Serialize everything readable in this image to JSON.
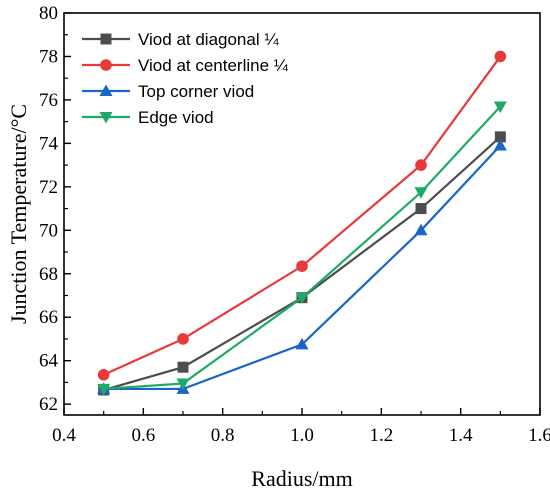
{
  "chart_data": {
    "type": "line",
    "xlabel": "Radius/mm",
    "ylabel": "Junction Temperature/°C",
    "xlim": [
      0.4,
      1.6
    ],
    "ylim": [
      61.5,
      80
    ],
    "x_ticks": [
      0.4,
      0.6,
      0.8,
      1.0,
      1.2,
      1.4,
      1.6
    ],
    "x_tick_labels": [
      "0.4",
      "0.6",
      "0.8",
      "1.0",
      "1.2",
      "1.4",
      "1.6"
    ],
    "y_ticks": [
      62,
      64,
      66,
      68,
      70,
      72,
      74,
      76,
      78,
      80
    ],
    "y_tick_labels": [
      "62",
      "64",
      "66",
      "68",
      "70",
      "72",
      "74",
      "76",
      "78",
      "80"
    ],
    "grid": false,
    "legend_position": "top-left",
    "series": [
      {
        "name": "Viod at diagonal ¼",
        "color": "#4d4d4d",
        "marker": "square",
        "x": [
          0.5,
          0.7,
          1.0,
          1.3,
          1.5
        ],
        "y": [
          62.65,
          63.7,
          66.9,
          71.0,
          74.3
        ]
      },
      {
        "name": "Viod at centerline ¼",
        "color": "#e8393a",
        "marker": "circle",
        "x": [
          0.5,
          0.7,
          1.0,
          1.3,
          1.5
        ],
        "y": [
          63.35,
          65.0,
          68.35,
          73.0,
          78.0
        ]
      },
      {
        "name": "Top corner viod",
        "color": "#1a66c8",
        "marker": "triangle-up",
        "x": [
          0.5,
          0.7,
          1.0,
          1.3,
          1.5
        ],
        "y": [
          62.7,
          62.7,
          64.75,
          70.0,
          73.9
        ]
      },
      {
        "name": "Edge viod",
        "color": "#1eaa66",
        "marker": "triangle-down",
        "x": [
          0.5,
          0.7,
          1.0,
          1.3,
          1.5
        ],
        "y": [
          62.7,
          62.95,
          66.9,
          71.75,
          75.7
        ]
      }
    ]
  }
}
